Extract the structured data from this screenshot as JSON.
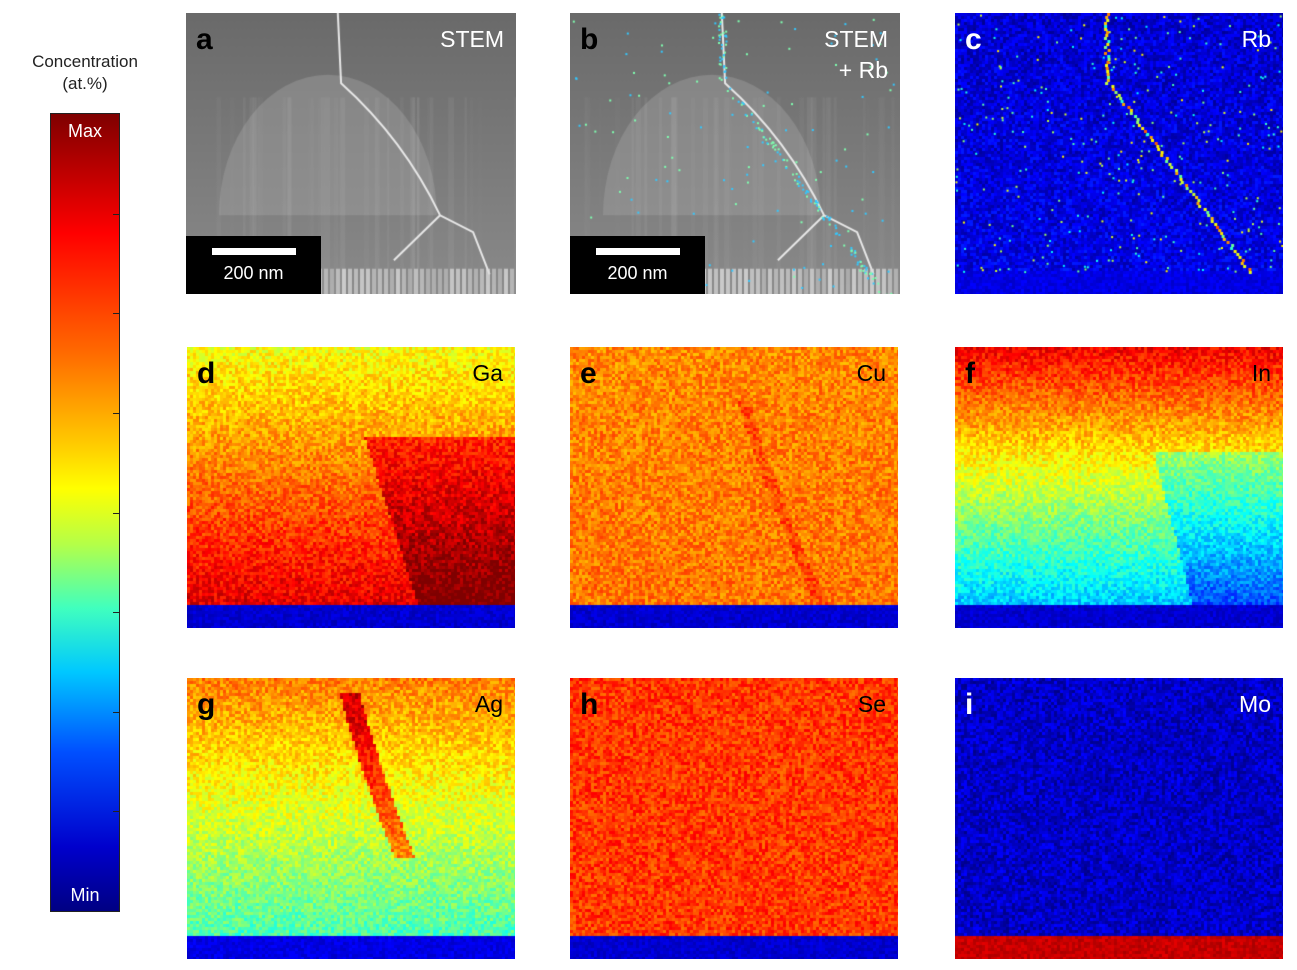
{
  "colorbar": {
    "title_line1": "Concentration",
    "title_line2": "(at.%)",
    "max_label": "Max",
    "min_label": "Min",
    "ticks": 8
  },
  "panels": [
    {
      "id": "a",
      "letter": "a",
      "name": "STEM",
      "type": "stem",
      "scale_bar": "200 nm"
    },
    {
      "id": "b",
      "letter": "b",
      "name_line1": "STEM",
      "name_line2": "+ Rb",
      "type": "stem_rb",
      "scale_bar": "200 nm"
    },
    {
      "id": "c",
      "letter": "c",
      "name": "Rb",
      "type": "map",
      "level_top": 0.08,
      "level_bottom": 0.1,
      "substrate_level": 0.1
    },
    {
      "id": "d",
      "letter": "d",
      "name": "Ga",
      "type": "map",
      "level_top": 0.62,
      "level_bottom": 0.9,
      "substrate_level": 0.08
    },
    {
      "id": "e",
      "letter": "e",
      "name": "Cu",
      "type": "map",
      "level_top": 0.74,
      "level_bottom": 0.76,
      "substrate_level": 0.08
    },
    {
      "id": "f",
      "letter": "f",
      "name": "In",
      "type": "map",
      "level_top": 0.88,
      "level_bottom": 0.32,
      "substrate_level": 0.08
    },
    {
      "id": "g",
      "letter": "g",
      "name": "Ag",
      "type": "map",
      "level_top": 0.75,
      "level_bottom": 0.45,
      "substrate_level": 0.1
    },
    {
      "id": "h",
      "letter": "h",
      "name": "Se",
      "type": "map",
      "level_top": 0.82,
      "level_bottom": 0.82,
      "substrate_level": 0.08
    },
    {
      "id": "i",
      "letter": "i",
      "name": "Mo",
      "type": "map",
      "level_top": 0.07,
      "level_bottom": 0.07,
      "substrate_level": 0.93
    }
  ]
}
